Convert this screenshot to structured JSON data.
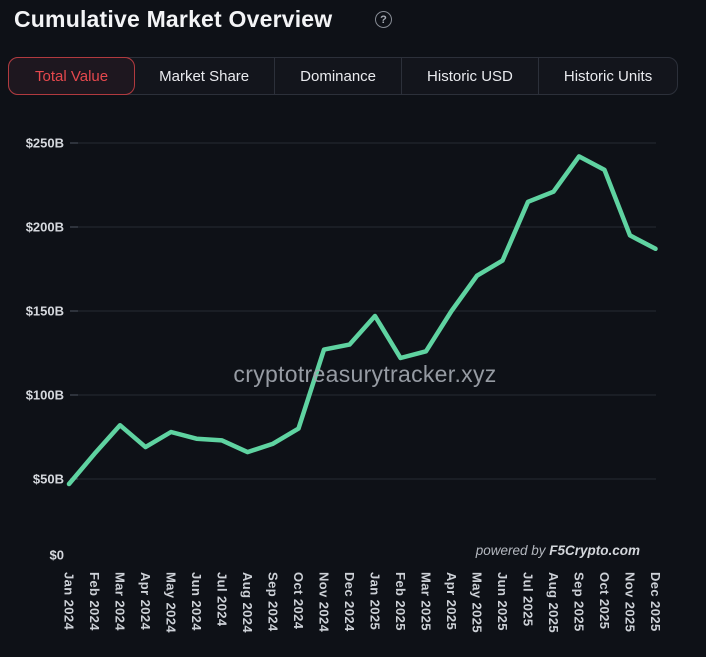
{
  "header": {
    "title": "Cumulative Market Overview",
    "help_label": "?"
  },
  "tabs": [
    {
      "id": "total-value",
      "label": "Total Value",
      "active": true
    },
    {
      "id": "market-share",
      "label": "Market Share",
      "active": false
    },
    {
      "id": "dominance",
      "label": "Dominance",
      "active": false
    },
    {
      "id": "historic-usd",
      "label": "Historic USD",
      "active": false
    },
    {
      "id": "historic-units",
      "label": "Historic Units",
      "active": false
    }
  ],
  "watermark": "cryptotreasurytracker.xyz",
  "credit": {
    "prefix": "powered by ",
    "brand": "F5Crypto.com"
  },
  "colors": {
    "background": "#0e1117",
    "accent_red": "#e5484d",
    "line_green": "#5fd3a1",
    "grid": "#262a33"
  },
  "chart_data": {
    "type": "line",
    "title": "Cumulative Market Overview — Total Value",
    "x": [
      "Jan 2024",
      "Feb 2024",
      "Mar 2024",
      "Apr 2024",
      "May 2024",
      "Jun 2024",
      "Jul 2024",
      "Aug 2024",
      "Sep 2024",
      "Oct 2024",
      "Nov 2024",
      "Dec 2024",
      "Jan 2025",
      "Feb 2025",
      "Mar 2025",
      "Apr 2025",
      "May 2025",
      "Jun 2025",
      "Jul 2025",
      "Aug 2025",
      "Sep 2025",
      "Oct 2025",
      "Nov 2025",
      "Dec 2025"
    ],
    "series": [
      {
        "name": "Total Value",
        "color": "#5fd3a1",
        "unit": "USD billions",
        "values": [
          47,
          65,
          82,
          69,
          78,
          74,
          73,
          66,
          71,
          80,
          127,
          130,
          147,
          122,
          126,
          150,
          171,
          180,
          215,
          221,
          242,
          234,
          195,
          187
        ]
      }
    ],
    "ylim": [
      0,
      250
    ],
    "yticks": {
      "values": [
        0,
        50,
        100,
        150,
        200,
        250
      ],
      "labels": [
        "$0",
        "$50B",
        "$100B",
        "$150B",
        "$200B",
        "$250B"
      ]
    },
    "grid": "horizontal-only",
    "legend": "none",
    "x_label_rotation": 90
  }
}
